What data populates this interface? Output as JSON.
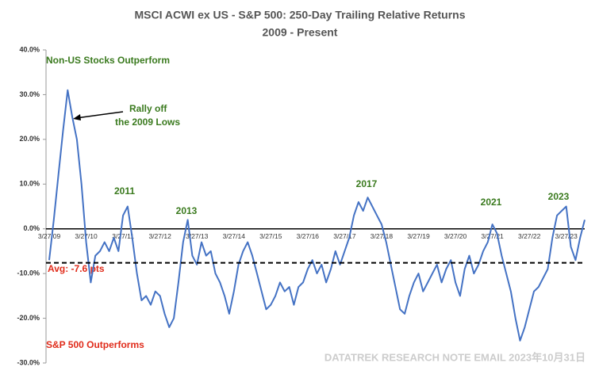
{
  "chart_data": {
    "type": "line",
    "title": "MSCI ACWI ex US - S&P 500: 250-Day Trailing Relative Returns",
    "subtitle": "2009 - Present",
    "categories": [
      "3/27/09",
      null,
      null,
      null,
      null,
      null,
      null,
      null,
      "3/27/10",
      null,
      null,
      null,
      null,
      null,
      null,
      null,
      "3/27/11",
      null,
      null,
      null,
      null,
      null,
      null,
      null,
      "3/27/12",
      null,
      null,
      null,
      null,
      null,
      null,
      null,
      "3/27/13",
      null,
      null,
      null,
      null,
      null,
      null,
      null,
      "3/27/14",
      null,
      null,
      null,
      null,
      null,
      null,
      null,
      "3/27/15",
      null,
      null,
      null,
      null,
      null,
      null,
      null,
      "3/27/16",
      null,
      null,
      null,
      null,
      null,
      null,
      null,
      "3/27/17",
      null,
      null,
      null,
      null,
      null,
      null,
      null,
      "3/27/18",
      null,
      null,
      null,
      null,
      null,
      null,
      null,
      "3/27/19",
      null,
      null,
      null,
      null,
      null,
      null,
      null,
      "3/27/20",
      null,
      null,
      null,
      null,
      null,
      null,
      null,
      "3/27/21",
      null,
      null,
      null,
      null,
      null,
      null,
      null,
      "3/27/22",
      null,
      null,
      null,
      null,
      null,
      null,
      null,
      "3/27/23",
      null,
      null,
      null,
      null
    ],
    "series": [
      {
        "color": "#4472c4",
        "values": [
          -7,
          2,
          12,
          22,
          31,
          25,
          20,
          10,
          -3,
          -12,
          -6,
          -5,
          -3,
          -5,
          -2,
          -5,
          3,
          5,
          -2,
          -10,
          -16,
          -15,
          -17,
          -14,
          -15,
          -19,
          -22,
          -20,
          -12,
          -3,
          2,
          -6,
          -8,
          -3,
          -6,
          -5,
          -10,
          -12,
          -15,
          -19,
          -14,
          -8,
          -5,
          -3,
          -6,
          -10,
          -14,
          -18,
          -17,
          -15,
          -12,
          -14,
          -13,
          -17,
          -13,
          -12,
          -9,
          -7,
          -10,
          -8,
          -12,
          -9,
          -5,
          -8,
          -5,
          -2,
          3,
          6,
          4,
          7,
          5,
          3,
          1,
          -3,
          -8,
          -13,
          -18,
          -19,
          -15,
          -12,
          -10,
          -14,
          -12,
          -10,
          -8,
          -12,
          -9,
          -7,
          -12,
          -15,
          -9,
          -6,
          -10,
          -8,
          -5,
          -3,
          1,
          -1,
          -6,
          -10,
          -14,
          -20,
          -25,
          -22,
          -18,
          -14,
          -13,
          -11,
          -9,
          -2,
          3,
          4,
          5,
          -4,
          -7,
          -2,
          2
        ]
      }
    ],
    "average": -7.6,
    "ylim": [
      -30,
      40
    ],
    "yticks": [
      {
        "value": -30,
        "label": "-30.0%"
      },
      {
        "value": -20,
        "label": "-20.0%"
      },
      {
        "value": -10,
        "label": "-10.0%"
      },
      {
        "value": 0,
        "label": "0.0%"
      },
      {
        "value": 10,
        "label": "10.0%"
      },
      {
        "value": 20,
        "label": "20.0%"
      },
      {
        "value": 30,
        "label": "30.0%"
      },
      {
        "value": 40,
        "label": "40.0%"
      }
    ],
    "annotations": {
      "top": "Non-US Stocks Outperform",
      "rally1": "Rally off",
      "rally2": "the 2009 Lows",
      "y2011": "2011",
      "y2013": "2013",
      "y2017": "2017",
      "y2021": "2021",
      "y2023": "2023",
      "avg": "Avg: -7.6 pts",
      "bottom": "S&P 500 Outperforms"
    },
    "watermark": "DATATREK RESEARCH NOTE EMAIL 2023年10月31日"
  }
}
